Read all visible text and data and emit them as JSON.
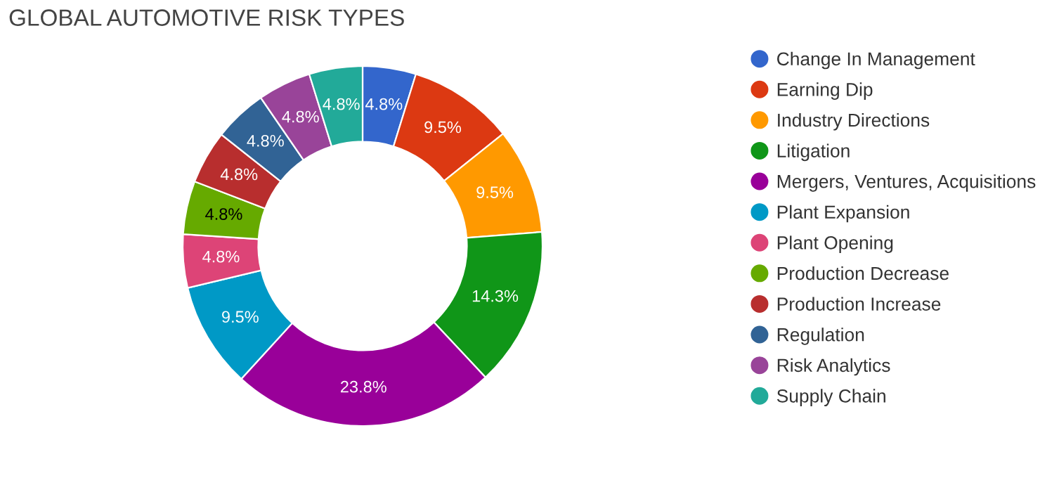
{
  "chart_data": {
    "type": "donut",
    "title": "GLOBAL AUTOMOTIVE RISK TYPES",
    "categories": [
      "Change In Management",
      "Earning Dip",
      "Industry Directions",
      "Litigation",
      "Mergers, Ventures, Acquisitions",
      "Plant Expansion",
      "Plant Opening",
      "Production Decrease",
      "Production Increase",
      "Regulation",
      "Risk Analytics",
      "Supply Chain"
    ],
    "values": [
      4.8,
      9.5,
      9.5,
      14.3,
      23.8,
      9.5,
      4.8,
      4.8,
      4.8,
      4.8,
      4.8,
      4.8
    ],
    "value_labels": [
      "4.8%",
      "9.5%",
      "9.5%",
      "14.3%",
      "23.8%",
      "9.5%",
      "4.8%",
      "4.8%",
      "4.8%",
      "4.8%",
      "4.8%",
      "4.8%"
    ],
    "colors": [
      "#3366cc",
      "#dc3912",
      "#ff9900",
      "#109618",
      "#990099",
      "#0099c6",
      "#dd4477",
      "#66aa00",
      "#b82e2e",
      "#316395",
      "#994499",
      "#22aa99"
    ],
    "legend": "right"
  }
}
